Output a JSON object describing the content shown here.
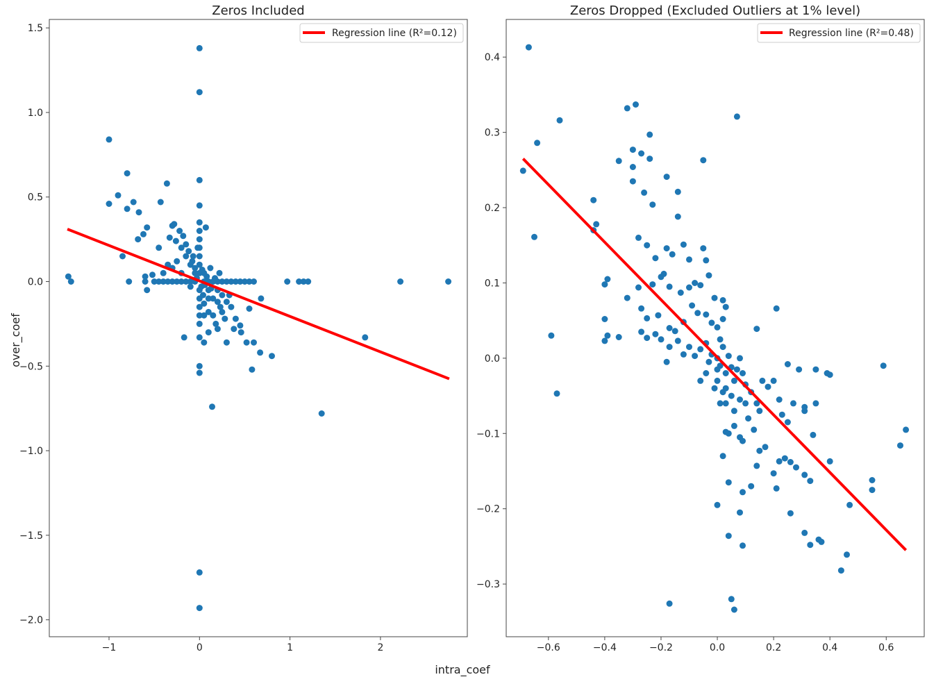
{
  "figure": {
    "xlabel": "intra_coef",
    "ylabel": "over_coef"
  },
  "colors": {
    "points": "#1f77b4",
    "regression": "#ff0000",
    "frame": "#444444"
  },
  "chart_data": [
    {
      "type": "scatter",
      "title": "Zeros Included",
      "legend": {
        "label": "Regression line (R²=0.12)",
        "placement": "top-right"
      },
      "xlim": [
        -1.66,
        2.96
      ],
      "ylim": [
        -2.1,
        1.55
      ],
      "xticks": [
        -1,
        0,
        1,
        2
      ],
      "xtick_labels": [
        "−1",
        "0",
        "1",
        "2"
      ],
      "yticks": [
        1.5,
        1.0,
        0.5,
        0.0,
        -0.5,
        -1.0,
        -1.5,
        -2.0
      ],
      "ytick_labels": [
        "1.5",
        "1.0",
        "0.5",
        "0.0",
        "−0.5",
        "−1.0",
        "−1.5",
        "−2.0"
      ],
      "regression": {
        "x": [
          -1.46,
          2.76
        ],
        "y": [
          0.31,
          -0.575
        ]
      },
      "points": [
        [
          -1.45,
          0.03
        ],
        [
          -1.42,
          0.0
        ],
        [
          -1.0,
          0.84
        ],
        [
          -1.0,
          0.46
        ],
        [
          -0.9,
          0.51
        ],
        [
          -0.8,
          0.64
        ],
        [
          -0.8,
          0.43
        ],
        [
          -0.73,
          0.47
        ],
        [
          -0.67,
          0.41
        ],
        [
          -0.58,
          0.32
        ],
        [
          -0.62,
          0.28
        ],
        [
          -0.68,
          0.25
        ],
        [
          -0.43,
          0.47
        ],
        [
          -0.36,
          0.58
        ],
        [
          -0.85,
          0.15
        ],
        [
          -0.78,
          0.0
        ],
        [
          -0.6,
          0.0
        ],
        [
          -0.6,
          0.03
        ],
        [
          -0.58,
          -0.05
        ],
        [
          -0.52,
          0.04
        ],
        [
          -0.5,
          0.0
        ],
        [
          -0.45,
          0.0
        ],
        [
          -0.4,
          0.0
        ],
        [
          -0.35,
          0.0
        ],
        [
          -0.3,
          0.0
        ],
        [
          -0.25,
          0.0
        ],
        [
          -0.2,
          0.0
        ],
        [
          -0.15,
          0.0
        ],
        [
          -0.1,
          0.0
        ],
        [
          -0.05,
          0.0
        ],
        [
          0.05,
          0.0
        ],
        [
          0.1,
          0.0
        ],
        [
          0.15,
          0.0
        ],
        [
          0.2,
          0.0
        ],
        [
          0.25,
          0.0
        ],
        [
          0.3,
          0.0
        ],
        [
          0.35,
          0.0
        ],
        [
          0.4,
          0.0
        ],
        [
          0.45,
          0.0
        ],
        [
          0.5,
          0.0
        ],
        [
          0.55,
          0.0
        ],
        [
          0.6,
          0.0
        ],
        [
          0.97,
          0.0
        ],
        [
          1.1,
          0.0
        ],
        [
          1.15,
          0.0
        ],
        [
          1.2,
          0.0
        ],
        [
          2.22,
          0.0
        ],
        [
          2.75,
          0.0
        ],
        [
          0.0,
          1.38
        ],
        [
          0.0,
          1.12
        ],
        [
          0.0,
          0.6
        ],
        [
          0.0,
          0.45
        ],
        [
          0.0,
          0.35
        ],
        [
          0.0,
          0.3
        ],
        [
          0.0,
          0.25
        ],
        [
          0.0,
          0.2
        ],
        [
          0.0,
          0.15
        ],
        [
          0.0,
          0.1
        ],
        [
          0.0,
          0.05
        ],
        [
          0.0,
          -0.05
        ],
        [
          0.0,
          -0.1
        ],
        [
          0.0,
          -0.15
        ],
        [
          0.0,
          -0.2
        ],
        [
          0.0,
          -0.25
        ],
        [
          0.0,
          -0.33
        ],
        [
          0.0,
          -0.5
        ],
        [
          0.0,
          -0.54
        ],
        [
          0.0,
          -1.72
        ],
        [
          0.0,
          -1.93
        ],
        [
          0.07,
          0.32
        ],
        [
          0.05,
          -0.36
        ],
        [
          -0.17,
          -0.33
        ],
        [
          0.14,
          -0.74
        ],
        [
          1.35,
          -0.78
        ],
        [
          1.83,
          -0.33
        ],
        [
          0.8,
          -0.44
        ],
        [
          0.67,
          -0.42
        ],
        [
          0.58,
          -0.52
        ],
        [
          0.6,
          -0.36
        ],
        [
          0.52,
          -0.36
        ],
        [
          0.46,
          -0.3
        ],
        [
          0.45,
          -0.26
        ],
        [
          0.3,
          -0.36
        ],
        [
          0.2,
          -0.28
        ],
        [
          0.1,
          -0.3
        ],
        [
          0.15,
          -0.2
        ],
        [
          0.25,
          -0.18
        ],
        [
          0.35,
          -0.15
        ],
        [
          0.4,
          -0.22
        ],
        [
          0.55,
          -0.16
        ],
        [
          0.68,
          -0.1
        ],
        [
          0.33,
          -0.08
        ],
        [
          0.2,
          -0.12
        ],
        [
          0.1,
          -0.1
        ],
        [
          0.05,
          -0.2
        ],
        [
          -0.05,
          0.05
        ],
        [
          -0.1,
          0.1
        ],
        [
          -0.15,
          0.15
        ],
        [
          -0.2,
          0.05
        ],
        [
          -0.25,
          0.12
        ],
        [
          -0.3,
          0.08
        ],
        [
          -0.35,
          0.1
        ],
        [
          -0.4,
          0.05
        ],
        [
          -0.45,
          0.2
        ],
        [
          -0.3,
          0.33
        ],
        [
          -0.28,
          0.34
        ],
        [
          -0.22,
          0.3
        ],
        [
          -0.18,
          0.27
        ],
        [
          -0.15,
          0.22
        ],
        [
          -0.12,
          0.18
        ],
        [
          -0.08,
          0.12
        ],
        [
          -0.05,
          0.08
        ],
        [
          -0.02,
          0.2
        ],
        [
          0.05,
          0.05
        ],
        [
          0.1,
          -0.05
        ],
        [
          0.15,
          -0.1
        ],
        [
          0.2,
          -0.05
        ],
        [
          0.25,
          -0.08
        ],
        [
          0.3,
          -0.12
        ],
        [
          0.22,
          0.05
        ],
        [
          0.12,
          0.08
        ],
        [
          0.08,
          0.03
        ],
        [
          -0.1,
          -0.03
        ],
        [
          0.02,
          -0.03
        ],
        [
          0.03,
          0.07
        ],
        [
          -0.07,
          0.15
        ],
        [
          -0.33,
          0.26
        ],
        [
          -0.26,
          0.24
        ],
        [
          -0.2,
          0.2
        ],
        [
          0.1,
          -0.18
        ],
        [
          0.18,
          -0.25
        ],
        [
          0.28,
          -0.22
        ],
        [
          0.38,
          -0.28
        ],
        [
          0.05,
          -0.13
        ],
        [
          0.23,
          -0.15
        ],
        [
          0.13,
          -0.04
        ],
        [
          0.04,
          -0.08
        ],
        [
          -0.03,
          0.02
        ],
        [
          0.06,
          -0.02
        ],
        [
          0.17,
          0.02
        ]
      ]
    },
    {
      "type": "scatter",
      "title": "Zeros Dropped (Excluded Outliers at 1% level)",
      "legend": {
        "label": "Regression line (R²=0.48)",
        "placement": "top-right"
      },
      "xlim": [
        -0.75,
        0.735
      ],
      "ylim": [
        -0.37,
        0.45
      ],
      "xticks": [
        -0.6,
        -0.4,
        -0.2,
        0.0,
        0.2,
        0.4,
        0.6
      ],
      "xtick_labels": [
        "−0.6",
        "−0.4",
        "−0.2",
        "0.0",
        "0.2",
        "0.4",
        "0.6"
      ],
      "yticks": [
        0.4,
        0.3,
        0.2,
        0.1,
        0.0,
        -0.1,
        -0.2,
        -0.3
      ],
      "ytick_labels": [
        "0.4",
        "0.3",
        "0.2",
        "0.1",
        "0.0",
        "−0.1",
        "−0.2",
        "−0.3"
      ],
      "regression": {
        "x": [
          -0.69,
          0.67
        ],
        "y": [
          0.265,
          -0.255
        ]
      },
      "points": [
        [
          -0.67,
          0.413
        ],
        [
          -0.69,
          0.249
        ],
        [
          -0.64,
          0.286
        ],
        [
          -0.56,
          0.316
        ],
        [
          -0.65,
          0.161
        ],
        [
          -0.59,
          0.03
        ],
        [
          -0.57,
          -0.047
        ],
        [
          -0.44,
          0.21
        ],
        [
          -0.43,
          0.178
        ],
        [
          -0.44,
          0.17
        ],
        [
          -0.4,
          0.098
        ],
        [
          -0.39,
          0.105
        ],
        [
          -0.4,
          0.052
        ],
        [
          -0.39,
          0.03
        ],
        [
          -0.4,
          0.023
        ],
        [
          -0.35,
          0.028
        ],
        [
          -0.35,
          0.262
        ],
        [
          -0.32,
          0.332
        ],
        [
          -0.29,
          0.337
        ],
        [
          -0.3,
          0.277
        ],
        [
          -0.3,
          0.254
        ],
        [
          -0.27,
          0.272
        ],
        [
          -0.24,
          0.297
        ],
        [
          -0.24,
          0.265
        ],
        [
          -0.3,
          0.235
        ],
        [
          -0.26,
          0.22
        ],
        [
          -0.23,
          0.204
        ],
        [
          -0.18,
          0.241
        ],
        [
          -0.14,
          0.221
        ],
        [
          -0.14,
          0.188
        ],
        [
          -0.05,
          0.263
        ],
        [
          0.07,
          0.321
        ],
        [
          -0.28,
          0.16
        ],
        [
          -0.25,
          0.15
        ],
        [
          -0.22,
          0.133
        ],
        [
          -0.19,
          0.112
        ],
        [
          -0.18,
          0.146
        ],
        [
          -0.16,
          0.138
        ],
        [
          -0.12,
          0.151
        ],
        [
          -0.1,
          0.131
        ],
        [
          -0.05,
          0.146
        ],
        [
          -0.04,
          0.13
        ],
        [
          -0.32,
          0.08
        ],
        [
          -0.28,
          0.094
        ],
        [
          -0.23,
          0.098
        ],
        [
          -0.2,
          0.108
        ],
        [
          -0.17,
          0.095
        ],
        [
          -0.13,
          0.087
        ],
        [
          -0.1,
          0.094
        ],
        [
          -0.08,
          0.1
        ],
        [
          -0.06,
          0.097
        ],
        [
          -0.03,
          0.11
        ],
        [
          -0.01,
          0.08
        ],
        [
          0.02,
          0.077
        ],
        [
          -0.27,
          0.066
        ],
        [
          -0.25,
          0.053
        ],
        [
          -0.21,
          0.057
        ],
        [
          -0.2,
          0.025
        ],
        [
          -0.17,
          0.015
        ],
        [
          -0.15,
          0.036
        ],
        [
          -0.12,
          0.048
        ],
        [
          -0.09,
          0.07
        ],
        [
          -0.07,
          0.06
        ],
        [
          -0.04,
          0.058
        ],
        [
          -0.02,
          0.047
        ],
        [
          0.0,
          0.041
        ],
        [
          0.02,
          0.052
        ],
        [
          0.03,
          0.068
        ],
        [
          -0.27,
          0.035
        ],
        [
          -0.25,
          0.027
        ],
        [
          -0.22,
          0.032
        ],
        [
          -0.17,
          0.04
        ],
        [
          -0.14,
          0.023
        ],
        [
          -0.12,
          0.005
        ],
        [
          -0.1,
          0.015
        ],
        [
          -0.08,
          0.003
        ],
        [
          -0.06,
          0.012
        ],
        [
          -0.04,
          0.02
        ],
        [
          -0.02,
          0.005
        ],
        [
          0.0,
          0.0
        ],
        [
          0.01,
          -0.01
        ],
        [
          0.02,
          0.015
        ],
        [
          0.03,
          -0.02
        ],
        [
          0.04,
          0.003
        ],
        [
          0.05,
          -0.012
        ],
        [
          0.06,
          -0.03
        ],
        [
          0.07,
          -0.015
        ],
        [
          0.08,
          0.0
        ],
        [
          0.09,
          -0.02
        ],
        [
          0.1,
          -0.035
        ],
        [
          -0.18,
          -0.005
        ],
        [
          -0.06,
          -0.03
        ],
        [
          -0.04,
          -0.02
        ],
        [
          0.0,
          -0.03
        ],
        [
          0.02,
          -0.045
        ],
        [
          0.03,
          -0.06
        ],
        [
          0.05,
          -0.05
        ],
        [
          0.06,
          -0.07
        ],
        [
          0.08,
          -0.055
        ],
        [
          0.1,
          -0.06
        ],
        [
          0.12,
          -0.045
        ],
        [
          0.14,
          -0.06
        ],
        [
          0.11,
          -0.08
        ],
        [
          0.13,
          -0.095
        ],
        [
          0.15,
          -0.07
        ],
        [
          0.16,
          -0.03
        ],
        [
          0.18,
          -0.038
        ],
        [
          0.2,
          -0.03
        ],
        [
          0.21,
          0.066
        ],
        [
          0.14,
          0.039
        ],
        [
          0.25,
          -0.008
        ],
        [
          0.29,
          -0.015
        ],
        [
          0.35,
          -0.015
        ],
        [
          0.39,
          -0.02
        ],
        [
          0.4,
          -0.022
        ],
        [
          0.22,
          -0.055
        ],
        [
          0.23,
          -0.075
        ],
        [
          0.25,
          -0.085
        ],
        [
          0.27,
          -0.06
        ],
        [
          0.31,
          -0.065
        ],
        [
          0.35,
          -0.06
        ],
        [
          0.31,
          -0.07
        ],
        [
          0.34,
          -0.102
        ],
        [
          0.4,
          -0.137
        ],
        [
          0.24,
          -0.133
        ],
        [
          0.22,
          -0.137
        ],
        [
          0.26,
          -0.138
        ],
        [
          0.28,
          -0.145
        ],
        [
          0.31,
          -0.155
        ],
        [
          0.33,
          -0.163
        ],
        [
          0.2,
          -0.153
        ],
        [
          0.21,
          -0.173
        ],
        [
          0.17,
          -0.118
        ],
        [
          0.15,
          -0.123
        ],
        [
          0.14,
          -0.143
        ],
        [
          0.02,
          -0.13
        ],
        [
          0.03,
          -0.098
        ],
        [
          0.04,
          -0.1
        ],
        [
          0.06,
          -0.09
        ],
        [
          0.08,
          -0.105
        ],
        [
          0.09,
          -0.11
        ],
        [
          0.12,
          -0.17
        ],
        [
          0.04,
          -0.165
        ],
        [
          0.09,
          -0.178
        ],
        [
          0.0,
          -0.195
        ],
        [
          0.08,
          -0.205
        ],
        [
          0.26,
          -0.206
        ],
        [
          0.04,
          -0.236
        ],
        [
          0.09,
          -0.249
        ],
        [
          0.31,
          -0.232
        ],
        [
          0.33,
          -0.248
        ],
        [
          0.36,
          -0.241
        ],
        [
          0.37,
          -0.244
        ],
        [
          0.44,
          -0.282
        ],
        [
          0.46,
          -0.261
        ],
        [
          0.47,
          -0.195
        ],
        [
          0.55,
          -0.162
        ],
        [
          0.55,
          -0.175
        ],
        [
          0.59,
          -0.01
        ],
        [
          0.65,
          -0.116
        ],
        [
          0.67,
          -0.095
        ],
        [
          0.05,
          -0.32
        ],
        [
          0.06,
          -0.334
        ],
        [
          -0.17,
          -0.326
        ],
        [
          0.01,
          -0.06
        ],
        [
          -0.01,
          -0.04
        ],
        [
          0.03,
          -0.04
        ],
        [
          0.01,
          0.025
        ],
        [
          -0.03,
          -0.005
        ],
        [
          0.0,
          -0.015
        ]
      ]
    }
  ]
}
